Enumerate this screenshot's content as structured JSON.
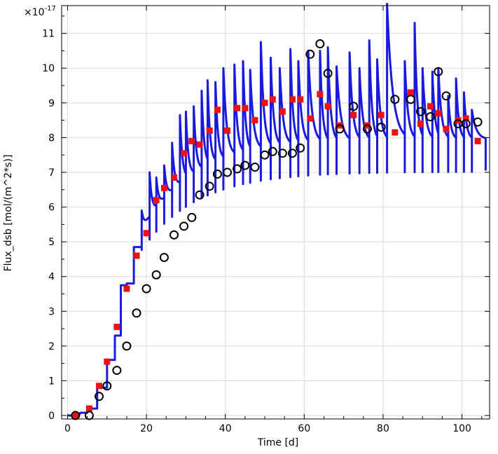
{
  "chart_data": {
    "type": "line",
    "xlabel": "Time [d]",
    "ylabel": "Flux_dsb [mol/(m^2*s)]",
    "y_multiplier_base": "×10",
    "y_multiplier_exp": "-17",
    "xlim": [
      -1.5,
      107
    ],
    "ylim": [
      -0.1,
      11.8
    ],
    "x_ticks": [
      0,
      20,
      40,
      60,
      80,
      100
    ],
    "y_ticks": [
      0,
      1,
      2,
      3,
      4,
      5,
      6,
      7,
      8,
      9,
      10,
      11
    ],
    "grid": true,
    "colors": {
      "line": "#1a1adf",
      "squares": "#ee1111",
      "circles": "#000000"
    },
    "series": [
      {
        "style": "line",
        "peaks": [
          [
            2,
            0.08
          ],
          [
            5,
            0.2
          ],
          [
            7.5,
            0.8
          ],
          [
            10,
            1.6
          ],
          [
            12,
            2.3
          ],
          [
            13.5,
            3.75
          ],
          [
            15,
            3.8
          ],
          [
            16.8,
            4.85
          ],
          [
            18.8,
            5.9
          ],
          [
            20.8,
            7.0
          ],
          [
            22.5,
            6.85
          ],
          [
            24.5,
            7.2
          ],
          [
            26.5,
            7.85
          ],
          [
            28.5,
            8.65
          ],
          [
            30,
            8.75
          ],
          [
            32,
            8.9
          ],
          [
            34,
            9.35
          ],
          [
            35.5,
            9.65
          ],
          [
            37.5,
            9.6
          ],
          [
            39.5,
            10.0
          ],
          [
            42.3,
            10.1
          ],
          [
            44.5,
            10.2
          ],
          [
            46.3,
            9.95
          ],
          [
            49,
            10.75
          ],
          [
            51.5,
            10.3
          ],
          [
            53.8,
            10.0
          ],
          [
            56.5,
            10.55
          ],
          [
            58.5,
            10.2
          ],
          [
            61,
            10.5
          ],
          [
            64,
            10.5
          ],
          [
            66,
            10.6
          ],
          [
            68.2,
            10.05
          ],
          [
            71.5,
            10.45
          ],
          [
            74,
            10.0
          ],
          [
            76.5,
            10.8
          ],
          [
            78.5,
            10.25
          ],
          [
            81,
            11.85
          ],
          [
            85.5,
            10.2
          ],
          [
            88,
            11.3
          ],
          [
            90,
            10.0
          ],
          [
            92.5,
            9.9
          ],
          [
            94,
            10.0
          ],
          [
            96.5,
            9.2
          ],
          [
            98.5,
            9.7
          ],
          [
            100.5,
            9.3
          ],
          [
            102.5,
            8.8
          ]
        ]
      },
      {
        "style": "filled-square",
        "x": [
          2,
          5.5,
          8,
          10,
          12.5,
          15,
          17.5,
          20,
          22.5,
          24.5,
          27,
          29.5,
          31.5,
          33.5,
          36,
          38,
          40.5,
          43,
          45,
          47.5,
          50,
          52,
          54.5,
          57,
          59,
          61.5,
          64,
          66,
          69,
          72.5,
          76,
          79.5,
          83,
          87,
          89.5,
          92,
          94,
          96,
          99,
          101,
          104
        ],
        "y": [
          0,
          0.2,
          0.85,
          1.55,
          2.55,
          3.65,
          4.6,
          5.25,
          6.2,
          6.55,
          6.85,
          7.55,
          7.9,
          7.8,
          8.2,
          8.8,
          8.2,
          8.85,
          8.85,
          8.5,
          9.0,
          9.1,
          8.75,
          9.1,
          9.1,
          8.55,
          9.25,
          8.9,
          8.35,
          8.65,
          8.35,
          8.65,
          8.15,
          9.3,
          8.4,
          8.9,
          8.7,
          8.25,
          8.5,
          8.55,
          7.9
        ]
      },
      {
        "style": "open-circle",
        "x": [
          2,
          5.5,
          8,
          10,
          12.5,
          15,
          17.5,
          20,
          22.5,
          24.5,
          27,
          29.5,
          31.5,
          33.5,
          36,
          38,
          40.5,
          43,
          45,
          47.5,
          50,
          52,
          54.5,
          57,
          59,
          61.5,
          64,
          66,
          69,
          72.5,
          76,
          79.5,
          83,
          87,
          89.5,
          92,
          94,
          96,
          99,
          101,
          104
        ],
        "y": [
          0,
          0,
          0.55,
          0.85,
          1.3,
          2.0,
          2.95,
          3.65,
          4.05,
          4.55,
          5.2,
          5.45,
          5.7,
          6.35,
          6.6,
          6.95,
          7.0,
          7.1,
          7.2,
          7.15,
          7.5,
          7.6,
          7.55,
          7.55,
          7.7,
          10.4,
          10.7,
          9.85,
          8.25,
          8.9,
          8.25,
          8.3,
          9.1,
          9.1,
          8.75,
          8.6,
          9.9,
          9.2,
          8.4,
          8.4,
          8.45
        ]
      }
    ]
  }
}
